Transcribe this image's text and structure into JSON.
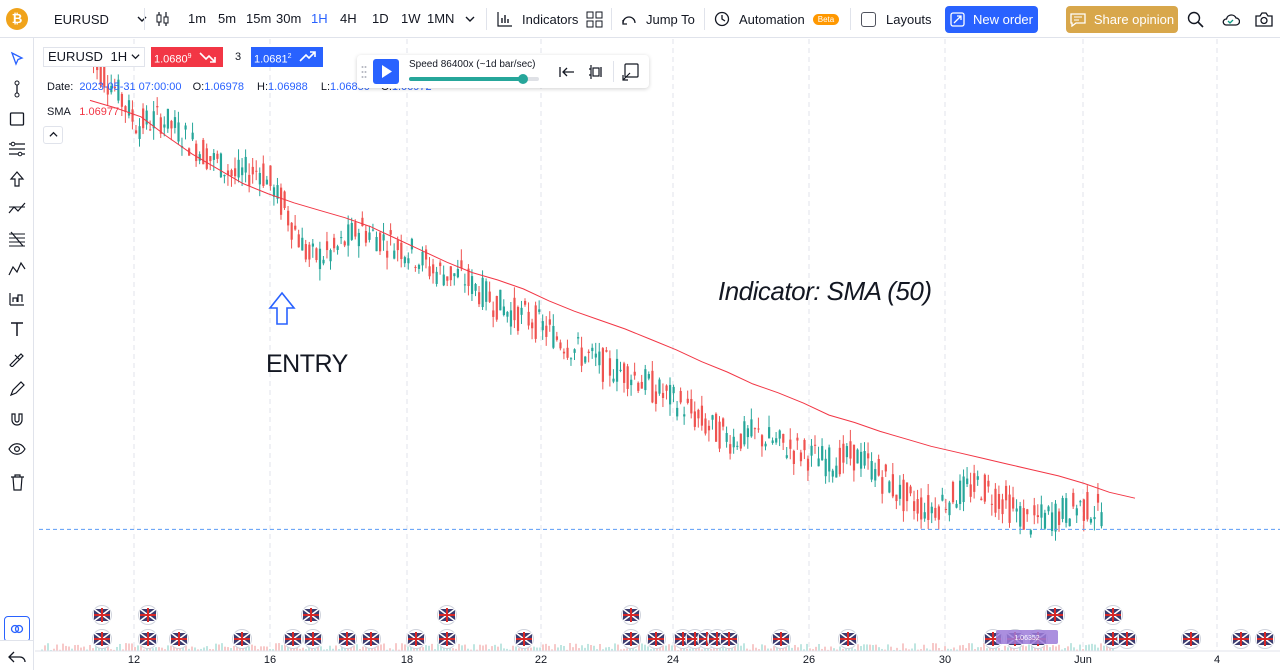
{
  "toolbar": {
    "symbol": "EURUSD",
    "timeframes": [
      "1m",
      "5m",
      "15m",
      "30m",
      "1H",
      "4H",
      "1D",
      "1W",
      "1MN"
    ],
    "active_timeframe": "1H",
    "indicators_label": "Indicators",
    "jump_to_label": "Jump To",
    "automation_label": "Automation",
    "beta_label": "Beta",
    "layouts_label": "Layouts",
    "new_order_label": "New order",
    "share_label": "Share opinion",
    "accent_color": "#2962ff",
    "share_color": "#d8a74b",
    "icons": [
      "logo-icon",
      "chevron-down-icon",
      "candles-icon",
      "bars-chart-icon",
      "grid-icon",
      "jump-to-icon",
      "automation-icon",
      "checkbox-icon",
      "new-order-icon",
      "share-icon",
      "search-icon",
      "cloud-icon",
      "camera-icon"
    ]
  },
  "legend": {
    "symbol": "EURUSD",
    "interval": "1H",
    "sell_price": "1.0680",
    "sell_sup": "9",
    "spread": "3",
    "buy_price": "1.0681",
    "buy_sup": "2",
    "date_label": "Date:",
    "date_value": "2023-05-31 07:00:00",
    "open_label": "O:",
    "open_value": "1.06978",
    "high_label": "H:",
    "high_value": "1.06988",
    "low_label": "L:",
    "low_value": "1.06850",
    "close_label": "C:",
    "close_value": "1.06972",
    "sma_label": "SMA",
    "sma_value": "1.06977"
  },
  "replay": {
    "speed_label": "Speed 86400x (~1d bar/sec)",
    "speed_level": 0.88
  },
  "annotations": {
    "indicator_text": "Indicator: SMA (50)",
    "entry_text": "ENTRY"
  },
  "marker_label": "1.06352",
  "chart_data": {
    "type": "line",
    "series": [
      {
        "values": [
          1.1005,
          1.0985,
          1.0958,
          1.0962,
          1.0949,
          1.0935,
          1.0923,
          1.0928,
          1.09,
          1.0867,
          1.0872,
          1.0888,
          1.088,
          1.0873,
          1.0859,
          1.0856,
          1.0844,
          1.0832,
          1.0826,
          1.0814,
          1.0803,
          1.0794,
          1.079,
          1.0778,
          1.0769,
          1.0755,
          1.0746,
          1.0749,
          1.0742,
          1.0736,
          1.073,
          1.0735,
          1.0722,
          1.0706,
          1.0698,
          1.0708,
          1.0715,
          1.0704,
          1.069,
          1.0694,
          1.0701,
          1.0697
        ]
      },
      {
        "name": "SMA",
        "values": [
          1.0974,
          1.0969,
          1.0963,
          1.095,
          1.0938,
          1.0928,
          1.0918,
          1.0911,
          1.0905,
          1.09,
          1.0895,
          1.0889,
          1.0881,
          1.0873,
          1.0865,
          1.0858,
          1.0853,
          1.0847,
          1.0839,
          1.0832,
          1.0826,
          1.082,
          1.0813,
          1.0806,
          1.0798,
          1.0791,
          1.0783,
          1.0777,
          1.077,
          1.0762,
          1.0757,
          1.0751,
          1.0746,
          1.0741,
          1.0737,
          1.0733,
          1.0729,
          1.0725,
          1.0721,
          1.0716,
          1.071,
          1.0706
        ]
      }
    ],
    "x_ticks": [
      "12",
      "16",
      "18",
      "22",
      "24",
      "26",
      "30",
      "Jun",
      "4"
    ],
    "ylim": [
      1.063,
      1.101
    ],
    "current_price": 1.0685,
    "colors": {
      "up": "#26a69a",
      "down": "#ef5350",
      "sma": "#f23645",
      "price_line": "#5b9cf6"
    }
  }
}
